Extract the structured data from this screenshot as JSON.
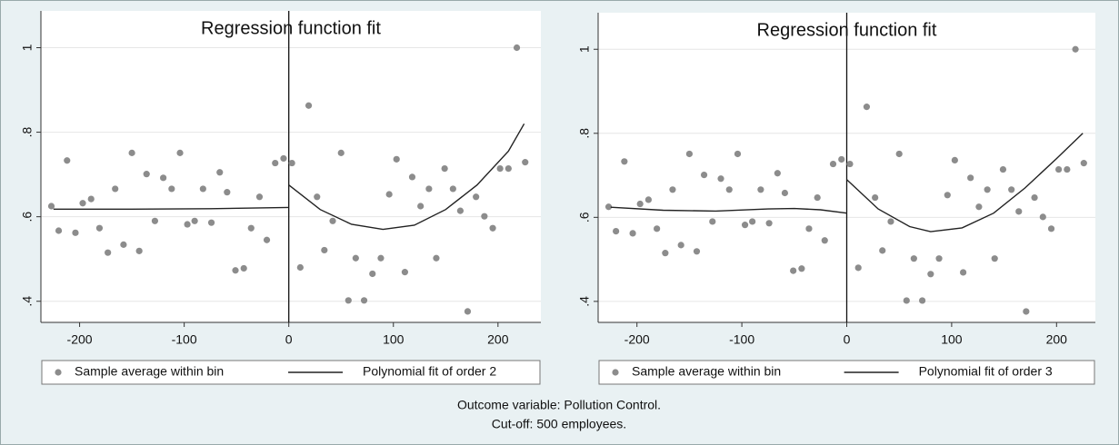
{
  "chart_data": [
    {
      "type": "scatter",
      "title": "Regression function fit",
      "xlim": [
        -237,
        241
      ],
      "ylim": [
        0.35,
        1.087
      ],
      "xticks": [
        -200,
        -100,
        0,
        100,
        200
      ],
      "yticks": [
        {
          "value": 0.4,
          "label": ".4"
        },
        {
          "value": 0.6,
          "label": ".6"
        },
        {
          "value": 0.8,
          "label": ".8"
        },
        1
      ],
      "grid": true,
      "xline": 0,
      "series": [
        {
          "name": "Sample average within bin",
          "color": "#8c8c8c",
          "mark": "point",
          "x": [
            -227,
            -220,
            -212,
            -204,
            -197,
            -189,
            -181,
            -173,
            -166,
            -158,
            -150,
            -143,
            -136,
            -128,
            -120,
            -112,
            -104,
            -97,
            -90,
            -82,
            -74,
            -66,
            -59,
            -51,
            -43,
            -36,
            -28,
            -21,
            -13,
            -5,
            3,
            11,
            19,
            27,
            34,
            42,
            50,
            57,
            64,
            72,
            80,
            88,
            96,
            103,
            111,
            118,
            126,
            134,
            141,
            149,
            157,
            164,
            171,
            179,
            187,
            195,
            202,
            210,
            218,
            226
          ],
          "values": [
            0.625,
            0.567,
            0.733,
            0.562,
            0.632,
            0.642,
            0.573,
            0.515,
            0.666,
            0.534,
            0.751,
            0.519,
            0.701,
            0.59,
            0.692,
            0.666,
            0.751,
            0.582,
            0.59,
            0.666,
            0.586,
            0.705,
            0.658,
            0.473,
            0.478,
            0.573,
            0.647,
            0.545,
            0.727,
            0.738,
            0.727,
            0.48,
            0.863,
            0.647,
            0.521,
            0.59,
            0.751,
            0.402,
            0.502,
            0.402,
            0.465,
            0.502,
            0.653,
            0.736,
            0.469,
            0.694,
            0.625,
            0.666,
            0.502,
            0.714,
            0.666,
            0.614,
            0.376,
            0.647,
            0.601,
            0.573,
            0.714,
            0.714,
            1,
            0.729
          ]
        },
        {
          "name": "Polynomial fit of order 2",
          "color": "#222222",
          "mark": "line",
          "x": [
            -225,
            -150,
            -75,
            0,
            null,
            0,
            30,
            60,
            90,
            120,
            150,
            180,
            210,
            225
          ],
          "values": [
            0.618,
            0.618,
            0.619,
            0.622,
            null,
            0.675,
            0.617,
            0.582,
            0.57,
            0.58,
            0.617,
            0.675,
            0.755,
            0.82
          ]
        }
      ]
    },
    {
      "type": "scatter",
      "title": "Regression function fit",
      "xlim": [
        -237,
        237
      ],
      "ylim": [
        0.35,
        1.087
      ],
      "xticks": [
        -200,
        -100,
        0,
        100,
        200
      ],
      "yticks": [
        {
          "value": 0.4,
          "label": ".4"
        },
        {
          "value": 0.6,
          "label": ".6"
        },
        {
          "value": 0.8,
          "label": ".8"
        },
        1
      ],
      "grid": true,
      "xline": 0,
      "series": [
        {
          "name": "Sample average within bin",
          "color": "#8c8c8c",
          "mark": "point",
          "x": [
            -227,
            -220,
            -212,
            -204,
            -197,
            -189,
            -181,
            -173,
            -166,
            -158,
            -150,
            -143,
            -136,
            -128,
            -120,
            -112,
            -104,
            -97,
            -90,
            -82,
            -74,
            -66,
            -59,
            -51,
            -43,
            -36,
            -28,
            -21,
            -13,
            -5,
            3,
            11,
            19,
            27,
            34,
            42,
            50,
            57,
            64,
            72,
            80,
            88,
            96,
            103,
            111,
            118,
            126,
            134,
            141,
            149,
            157,
            164,
            171,
            179,
            187,
            195,
            202,
            210,
            218,
            226
          ],
          "values": [
            0.625,
            0.567,
            0.733,
            0.562,
            0.632,
            0.642,
            0.573,
            0.515,
            0.666,
            0.534,
            0.751,
            0.519,
            0.701,
            0.59,
            0.692,
            0.666,
            0.751,
            0.582,
            0.59,
            0.666,
            0.586,
            0.705,
            0.658,
            0.473,
            0.478,
            0.573,
            0.647,
            0.545,
            0.727,
            0.738,
            0.727,
            0.48,
            0.863,
            0.647,
            0.521,
            0.59,
            0.751,
            0.402,
            0.502,
            0.402,
            0.465,
            0.502,
            0.653,
            0.736,
            0.469,
            0.694,
            0.625,
            0.666,
            0.502,
            0.714,
            0.666,
            0.614,
            0.376,
            0.647,
            0.601,
            0.573,
            0.714,
            0.714,
            1,
            0.729
          ]
        },
        {
          "name": "Polynomial fit of order 3",
          "color": "#222222",
          "mark": "line",
          "x": [
            -225,
            -175,
            -125,
            -75,
            -50,
            -25,
            0,
            null,
            0,
            30,
            60,
            80,
            110,
            140,
            170,
            200,
            225
          ],
          "values": [
            0.624,
            0.617,
            0.615,
            0.62,
            0.621,
            0.618,
            0.61,
            null,
            0.69,
            0.62,
            0.578,
            0.566,
            0.575,
            0.61,
            0.67,
            0.74,
            0.8
          ]
        }
      ]
    }
  ],
  "caption": [
    "Outcome variable: Pollution Control.",
    "Cut-off: 500 employees."
  ]
}
